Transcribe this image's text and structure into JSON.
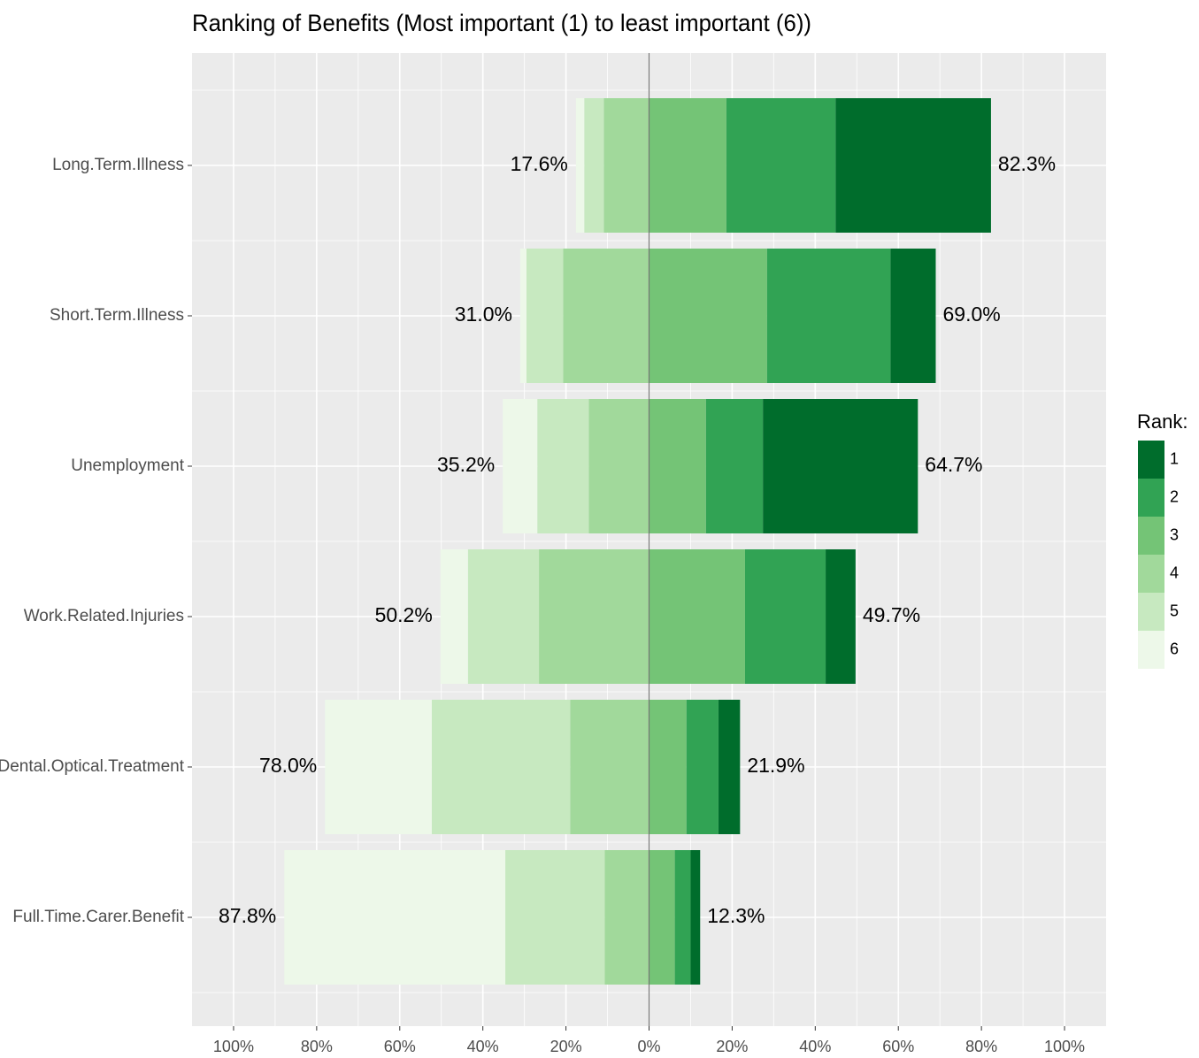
{
  "chart_data": {
    "type": "bar",
    "orientation": "horizontal",
    "stacked": true,
    "title": "Ranking of Benefits (Most important (1) to least important (6))",
    "categories": [
      "Long.Term.Illness",
      "Short.Term.Illness",
      "Unemployment",
      "Work.Related.Injuries",
      "Dental.Optical.Treatment",
      "Full.Time.Carer.Benefit"
    ],
    "series": [
      {
        "name": "1",
        "color": "#006d2c",
        "values": [
          37.4,
          10.9,
          37.3,
          7.2,
          5.2,
          2.3
        ]
      },
      {
        "name": "2",
        "color": "#31a354",
        "values": [
          26.3,
          29.7,
          13.7,
          19.4,
          7.7,
          3.8
        ]
      },
      {
        "name": "3",
        "color": "#74c476",
        "values": [
          18.6,
          28.4,
          13.7,
          23.1,
          9.0,
          6.2
        ]
      },
      {
        "name": "4",
        "color": "#a1d99b",
        "values": [
          -10.9,
          -20.7,
          -14.5,
          -26.5,
          -19.0,
          -10.7
        ]
      },
      {
        "name": "5",
        "color": "#c7e9c0",
        "values": [
          -4.7,
          -8.8,
          -12.4,
          -17.1,
          -33.3,
          -23.9
        ]
      },
      {
        "name": "6",
        "color": "#edf8e9",
        "values": [
          -2.0,
          -1.5,
          -8.3,
          -6.6,
          -25.7,
          -53.2
        ]
      }
    ],
    "totals": {
      "left": {
        "values": [
          -17.6,
          -31.0,
          -35.2,
          -50.2,
          -78.0,
          -87.8
        ],
        "value_labels": [
          "17.6%",
          "31.0%",
          "35.2%",
          "50.2%",
          "78.0%",
          "87.8%"
        ]
      },
      "right": {
        "values": [
          82.3,
          69.0,
          64.7,
          49.7,
          21.9,
          12.3
        ],
        "value_labels": [
          "82.3%",
          "69.0%",
          "64.7%",
          "49.7%",
          "21.9%",
          "12.3%"
        ]
      }
    },
    "xlim": [
      -110,
      110
    ],
    "xticks": [
      {
        "value": -100,
        "label": "100%"
      },
      {
        "value": -80,
        "label": "80%"
      },
      {
        "value": -60,
        "label": "60%"
      },
      {
        "value": -40,
        "label": "40%"
      },
      {
        "value": -20,
        "label": "20%"
      },
      {
        "value": 0,
        "label": "0%"
      },
      {
        "value": 20,
        "label": "20%"
      },
      {
        "value": 40,
        "label": "40%"
      },
      {
        "value": 60,
        "label": "60%"
      },
      {
        "value": 80,
        "label": "80%"
      },
      {
        "value": 100,
        "label": "100%"
      }
    ],
    "grid": true,
    "legend_title": "Rank:",
    "legend": "right"
  }
}
